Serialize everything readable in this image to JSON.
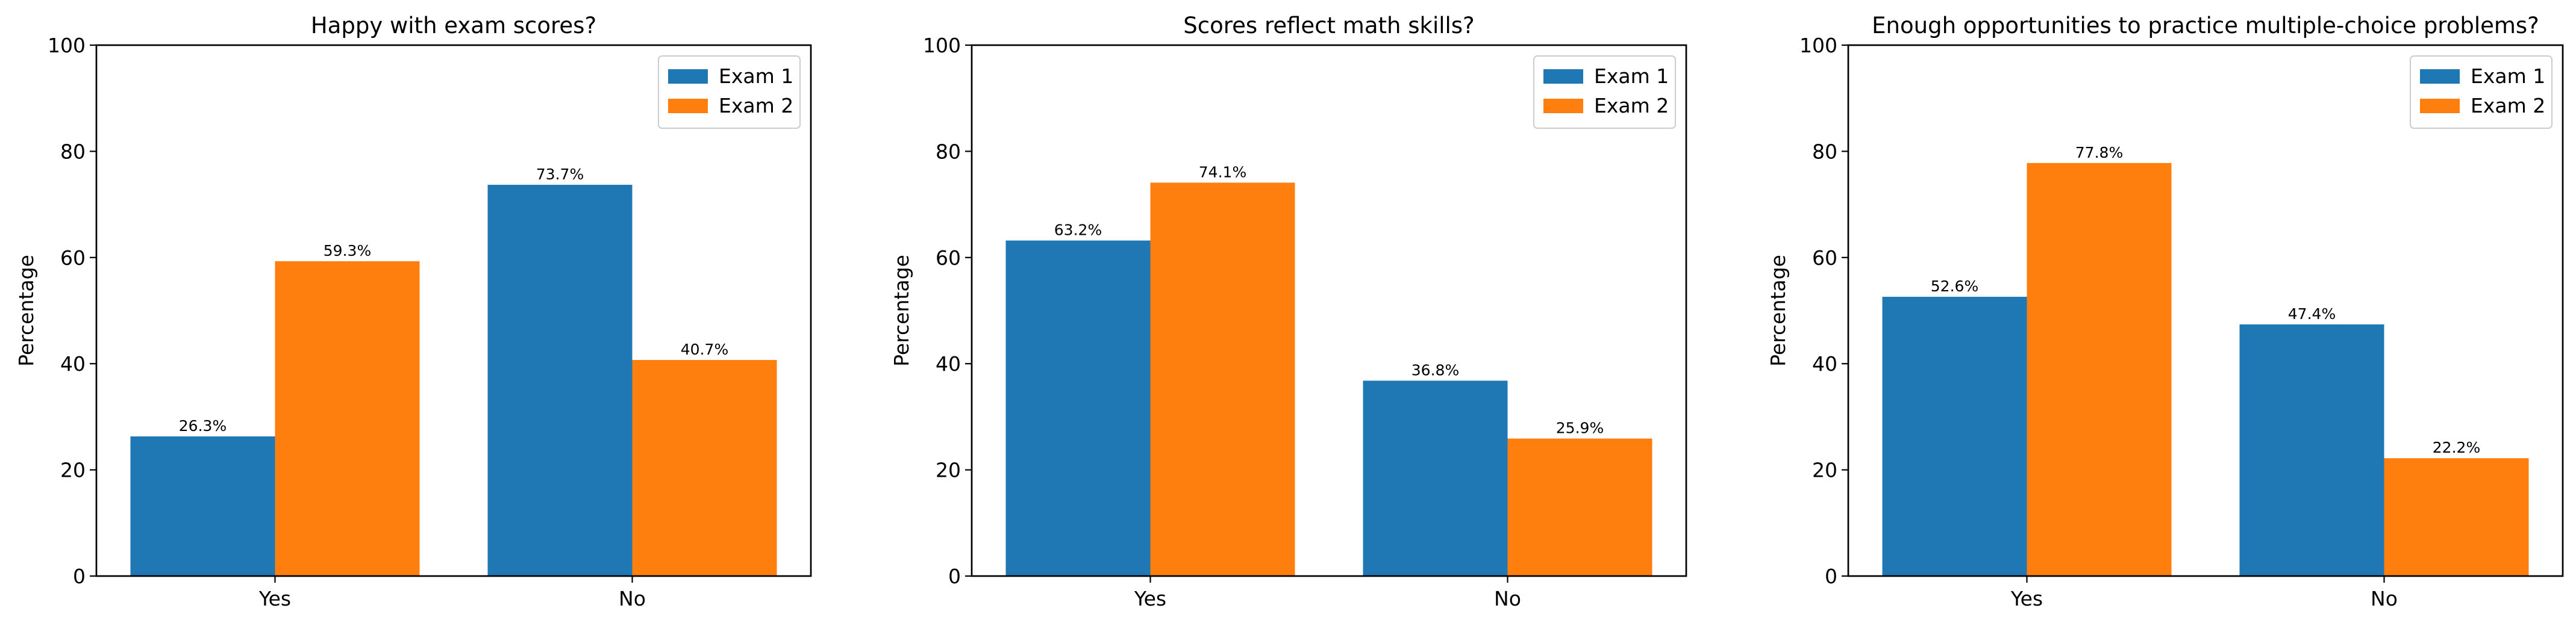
{
  "chart_data": [
    {
      "type": "bar",
      "title": "Happy with exam scores?",
      "xlabel": "",
      "ylabel": "Percentage",
      "ylim": [
        0,
        100
      ],
      "yticks": [
        0,
        20,
        40,
        60,
        80,
        100
      ],
      "categories": [
        "Yes",
        "No"
      ],
      "series": [
        {
          "name": "Exam 1",
          "color": "#1f77b4",
          "values": [
            26.3,
            73.7
          ],
          "labels": [
            "26.3%",
            "73.7%"
          ]
        },
        {
          "name": "Exam 2",
          "color": "#ff7f0e",
          "values": [
            59.3,
            40.7
          ],
          "labels": [
            "59.3%",
            "40.7%"
          ]
        }
      ],
      "legend": "top-right",
      "grid": false
    },
    {
      "type": "bar",
      "title": "Scores reflect math skills?",
      "xlabel": "",
      "ylabel": "Percentage",
      "ylim": [
        0,
        100
      ],
      "yticks": [
        0,
        20,
        40,
        60,
        80,
        100
      ],
      "categories": [
        "Yes",
        "No"
      ],
      "series": [
        {
          "name": "Exam 1",
          "color": "#1f77b4",
          "values": [
            63.2,
            36.8
          ],
          "labels": [
            "63.2%",
            "36.8%"
          ]
        },
        {
          "name": "Exam 2",
          "color": "#ff7f0e",
          "values": [
            74.1,
            25.9
          ],
          "labels": [
            "74.1%",
            "25.9%"
          ]
        }
      ],
      "legend": "top-right",
      "grid": false
    },
    {
      "type": "bar",
      "title": "Enough opportunities to practice multiple-choice problems?",
      "xlabel": "",
      "ylabel": "Percentage",
      "ylim": [
        0,
        100
      ],
      "yticks": [
        0,
        20,
        40,
        60,
        80,
        100
      ],
      "categories": [
        "Yes",
        "No"
      ],
      "series": [
        {
          "name": "Exam 1",
          "color": "#1f77b4",
          "values": [
            52.6,
            47.4
          ],
          "labels": [
            "52.6%",
            "47.4%"
          ]
        },
        {
          "name": "Exam 2",
          "color": "#ff7f0e",
          "values": [
            77.8,
            22.2
          ],
          "labels": [
            "77.8%",
            "22.2%"
          ]
        }
      ],
      "legend": "top-right",
      "grid": false
    }
  ]
}
